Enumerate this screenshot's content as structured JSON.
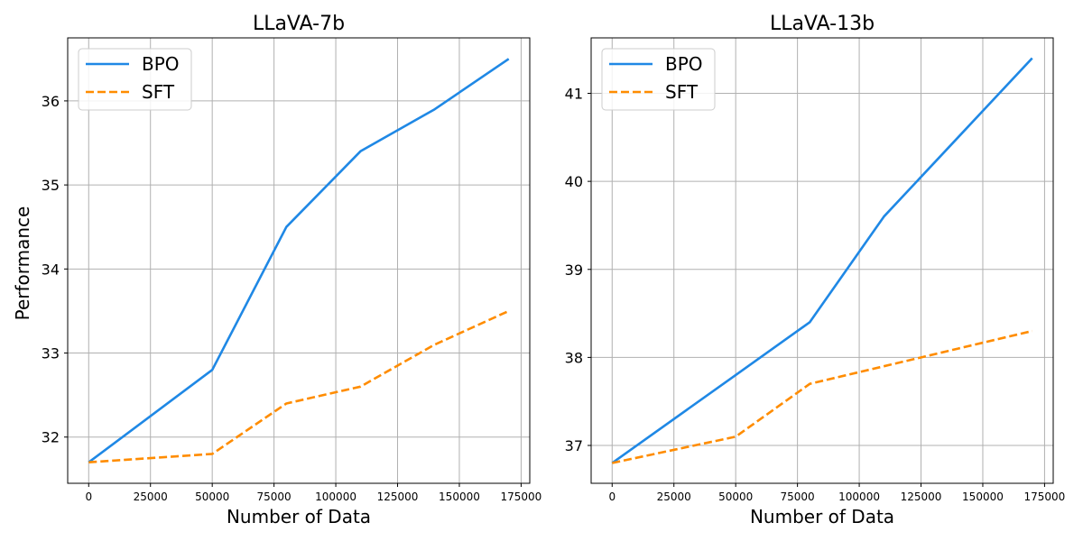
{
  "chart_data": [
    {
      "type": "line",
      "title": "LLaVA-7b",
      "xlabel": "Number of Data",
      "ylabel": "Performance",
      "x": [
        0,
        50000,
        80000,
        110000,
        140000,
        170000
      ],
      "series": [
        {
          "name": "BPO",
          "values": [
            31.7,
            32.8,
            34.5,
            35.4,
            35.9,
            36.5
          ],
          "color": "#1f88e5",
          "dash": "solid"
        },
        {
          "name": "SFT",
          "values": [
            31.7,
            31.8,
            32.4,
            32.6,
            33.1,
            33.5
          ],
          "color": "#ff8c00",
          "dash": "dashed"
        }
      ],
      "xlim": [
        -8500,
        178500
      ],
      "ylim": [
        31.45,
        36.75
      ],
      "xticks": [
        0,
        25000,
        50000,
        75000,
        100000,
        125000,
        150000,
        175000
      ],
      "xtick_labels": [
        "0",
        "25000",
        "50000",
        "75000",
        "100000",
        "125000",
        "150000",
        "175000"
      ],
      "yticks": [
        32,
        33,
        34,
        35,
        36
      ],
      "ytick_labels": [
        "32",
        "33",
        "34",
        "35",
        "36"
      ],
      "grid": true,
      "legend_position": "top-left"
    },
    {
      "type": "line",
      "title": "LLaVA-13b",
      "xlabel": "Number of Data",
      "ylabel": "",
      "x": [
        0,
        50000,
        80000,
        110000,
        140000,
        170000
      ],
      "series": [
        {
          "name": "BPO",
          "values": [
            36.8,
            37.8,
            38.4,
            39.6,
            40.5,
            41.4
          ],
          "color": "#1f88e5",
          "dash": "solid"
        },
        {
          "name": "SFT",
          "values": [
            36.8,
            37.1,
            37.7,
            37.9,
            38.1,
            38.3
          ],
          "color": "#ff8c00",
          "dash": "dashed"
        }
      ],
      "xlim": [
        -8500,
        178500
      ],
      "ylim": [
        36.57,
        41.63
      ],
      "xticks": [
        0,
        25000,
        50000,
        75000,
        100000,
        125000,
        150000,
        175000
      ],
      "xtick_labels": [
        "0",
        "25000",
        "50000",
        "75000",
        "100000",
        "125000",
        "150000",
        "175000"
      ],
      "yticks": [
        37,
        38,
        39,
        40,
        41
      ],
      "ytick_labels": [
        "37",
        "38",
        "39",
        "40",
        "41"
      ],
      "grid": true,
      "legend_position": "top-left"
    }
  ]
}
